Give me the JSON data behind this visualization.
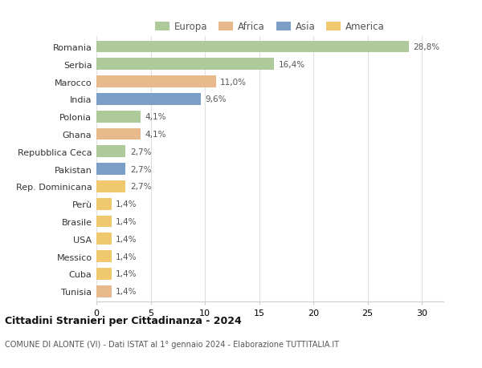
{
  "countries": [
    "Romania",
    "Serbia",
    "Marocco",
    "India",
    "Polonia",
    "Ghana",
    "Repubblica Ceca",
    "Pakistan",
    "Rep. Dominicana",
    "Perù",
    "Brasile",
    "USA",
    "Messico",
    "Cuba",
    "Tunisia"
  ],
  "values": [
    28.8,
    16.4,
    11.0,
    9.6,
    4.1,
    4.1,
    2.7,
    2.7,
    2.7,
    1.4,
    1.4,
    1.4,
    1.4,
    1.4,
    1.4
  ],
  "labels": [
    "28,8%",
    "16,4%",
    "11,0%",
    "9,6%",
    "4,1%",
    "4,1%",
    "2,7%",
    "2,7%",
    "2,7%",
    "1,4%",
    "1,4%",
    "1,4%",
    "1,4%",
    "1,4%",
    "1,4%"
  ],
  "continents": [
    "Europa",
    "Europa",
    "Africa",
    "Asia",
    "Europa",
    "Africa",
    "Europa",
    "Asia",
    "America",
    "America",
    "America",
    "America",
    "America",
    "America",
    "Africa"
  ],
  "colors": {
    "Europa": "#aec99a",
    "Africa": "#e8b98a",
    "Asia": "#7b9fc7",
    "America": "#f0c96e"
  },
  "legend_order": [
    "Europa",
    "Africa",
    "Asia",
    "America"
  ],
  "xlim": [
    0,
    32
  ],
  "xticks": [
    0,
    5,
    10,
    15,
    20,
    25,
    30
  ],
  "title": "Cittadini Stranieri per Cittadinanza - 2024",
  "subtitle": "COMUNE DI ALONTE (VI) - Dati ISTAT al 1° gennaio 2024 - Elaborazione TUTTITALIA.IT",
  "bg_color": "#ffffff",
  "grid_color": "#e0e0e0",
  "bar_height": 0.68
}
